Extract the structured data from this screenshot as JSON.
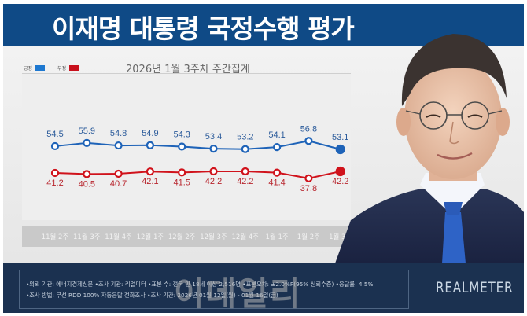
{
  "header": {
    "title": "이재명 대통령 국정수행 평가"
  },
  "chart_data": {
    "type": "line",
    "title": "이재명 대통령 국정수행 평가",
    "subtitle": "2026년 1월 3주차 주간집계",
    "categories": [
      "11월 2주",
      "11월 3주",
      "11월 4주",
      "12월 1주",
      "12월 2주",
      "12월 3주",
      "12월 4주",
      "1월 1주",
      "1월 2주",
      "1월 3주"
    ],
    "series": [
      {
        "name": "긍정",
        "color": "#1e63b8",
        "values": [
          54.5,
          55.9,
          54.8,
          54.9,
          54.3,
          53.4,
          53.2,
          54.1,
          56.8,
          53.1
        ]
      },
      {
        "name": "부정",
        "color": "#d0121b",
        "values": [
          41.2,
          40.5,
          40.7,
          42.1,
          41.5,
          42.2,
          42.2,
          41.4,
          37.8,
          42.2
        ]
      }
    ],
    "xlabel": "",
    "ylabel": "",
    "unit": "%",
    "grid": false,
    "legend_position": "top-left"
  },
  "legend": {
    "items": [
      {
        "label": "긍정",
        "color": "#1e78d0"
      },
      {
        "label": "부정",
        "color": "#c8101c"
      }
    ]
  },
  "footer": {
    "note_line1": "•의뢰 기관: 에너지경제신문 •조사 기관: 리얼미터 •표본 수: 전국 만 18세 이상 2,516명 •표본오차: ±2.0%P(95% 신뢰수준) •응답률: 4.5%",
    "note_line2": "•조사 방법: 무선 RDD 100% 자동응답 전화조사 •조사 기간: 2026년 01월 12일(월) - 01월 16일(금)",
    "brand": "REALMETER",
    "watermark": "이데일리"
  },
  "colors": {
    "title_bar": "#0f4a86",
    "footer_bg": "#1b3150",
    "positive_line": "#1e63b8",
    "negative_line": "#d0121b"
  }
}
